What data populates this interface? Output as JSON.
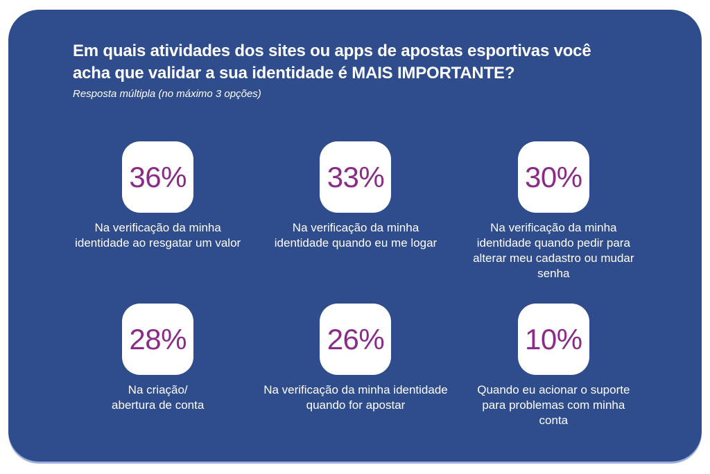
{
  "header": {
    "title": "Em quais atividades dos sites ou apps de apostas esportivas você\nacha que validar a sua identidade é MAIS IMPORTANTE?",
    "subtitle": "Resposta múltipla (no máximo 3 opções)"
  },
  "cards": [
    {
      "value": "36%",
      "caption": "Na verificação da minha\nidentidade ao resgatar um valor"
    },
    {
      "value": "33%",
      "caption": "Na verificação da minha\nidentidade quando eu me logar"
    },
    {
      "value": "30%",
      "caption": "Na verificação da minha\nidentidade quando pedir para\nalterar meu cadastro ou mudar\nsenha"
    },
    {
      "value": "28%",
      "caption": "Na criação/\nabertura de conta"
    },
    {
      "value": "26%",
      "caption": "Na verificação da minha identidade\nquando for apostar"
    },
    {
      "value": "10%",
      "caption": "Quando eu acionar o suporte\npara problemas com minha\nconta"
    }
  ],
  "colors": {
    "panel_background": "#2F4C8C",
    "card_background": "#FFFFFF",
    "percent_text": "#8A2B87",
    "caption_text": "#FFFFFF",
    "panel_bottom_edge": "#9DACDC"
  },
  "chart_data": {
    "type": "table",
    "title": "Em quais atividades dos sites ou apps de apostas esportivas você acha que validar a sua identidade é MAIS IMPORTANTE?",
    "subtitle": "Resposta múltipla (no máximo 3 opções)",
    "unit": "%",
    "categories": [
      "Na verificação da minha identidade ao resgatar um valor",
      "Na verificação da minha identidade quando eu me logar",
      "Na verificação da minha identidade quando pedir para alterar meu cadastro ou mudar senha",
      "Na criação/ abertura de conta",
      "Na verificação da minha identidade quando for apostar",
      "Quando eu acionar o suporte para problemas com minha conta"
    ],
    "values": [
      36,
      33,
      30,
      28,
      26,
      10
    ],
    "layout": "2 rows × 3 columns of stat cards, values in purple on white rounded tiles over blue panel"
  }
}
